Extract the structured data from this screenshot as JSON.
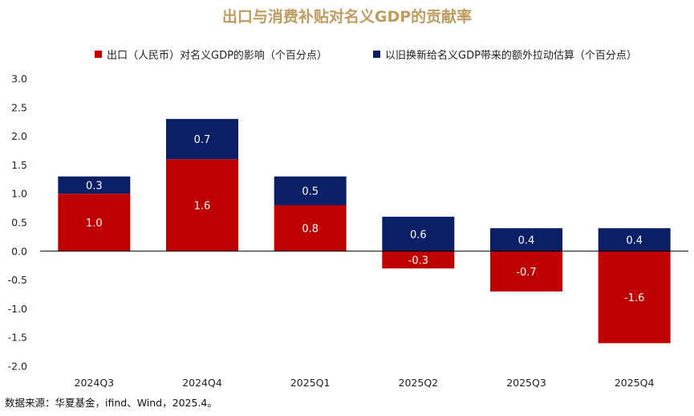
{
  "title": "出口与消费补贴对名义GDP的贡献率",
  "source": "数据来源：华夏基金，ifind、Wind，2025.4。",
  "colors": {
    "export": "#C00000",
    "subsidy": "#0B1F66",
    "title": "#C09A5E"
  },
  "chart_data": {
    "type": "bar",
    "stacked": true,
    "categories": [
      "2024Q3",
      "2024Q4",
      "2025Q1",
      "2025Q2",
      "2025Q3",
      "2025Q4"
    ],
    "series": [
      {
        "name": "出口（人民币）对名义GDP的影响（个百分点）",
        "values": [
          1.0,
          1.6,
          0.8,
          -0.3,
          -0.7,
          -1.6
        ],
        "labels": [
          "1.0",
          "1.6",
          "0.8",
          "-0.3",
          "-0.7",
          "-1.6"
        ]
      },
      {
        "name": "以旧换新给名义GDP带来的额外拉动估算（个百分点）",
        "values": [
          0.3,
          0.7,
          0.5,
          0.6,
          0.4,
          0.4
        ],
        "labels": [
          "0.3",
          "0.7",
          "0.5",
          "0.6",
          "0.4",
          "0.4"
        ]
      }
    ],
    "ylim": [
      -2.0,
      3.0
    ],
    "yticks": [
      "3.0",
      "2.5",
      "2.0",
      "1.5",
      "1.0",
      "0.5",
      "0.0",
      "-0.5",
      "-1.0",
      "-1.5",
      "-2.0"
    ],
    "legend_position": "top",
    "grid": false
  }
}
